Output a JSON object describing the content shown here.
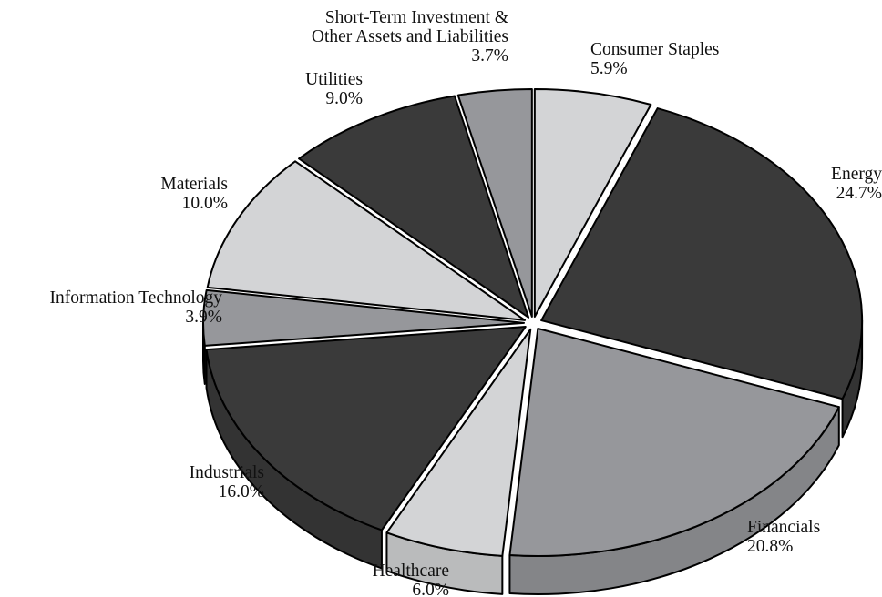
{
  "chart_data": {
    "type": "pie",
    "title": "",
    "style": "3d-exploded",
    "slices": [
      {
        "label": "Consumer Staples",
        "value": 5.9,
        "value_label": "5.9%",
        "color": "#d3d4d6"
      },
      {
        "label": "Energy",
        "value": 24.7,
        "value_label": "24.7%",
        "color": "#3a3a3a"
      },
      {
        "label": "Financials",
        "value": 20.8,
        "value_label": "20.8%",
        "color": "#96979b"
      },
      {
        "label": "Healthcare",
        "value": 6.0,
        "value_label": "6.0%",
        "color": "#d3d4d6"
      },
      {
        "label": "Industrials",
        "value": 16.0,
        "value_label": "16.0%",
        "color": "#3a3a3a"
      },
      {
        "label": "Information Technology",
        "value": 3.9,
        "value_label": "3.9%",
        "color": "#96979b"
      },
      {
        "label": "Materials",
        "value": 10.0,
        "value_label": "10.0%",
        "color": "#d3d4d6"
      },
      {
        "label": "Utilities",
        "value": 9.0,
        "value_label": "9.0%",
        "color": "#3a3a3a"
      },
      {
        "label": [
          "Short-Term Investment &",
          "Other Assets and Liabilities"
        ],
        "value": 3.7,
        "value_label": "3.7%",
        "color": "#96979b"
      }
    ]
  }
}
